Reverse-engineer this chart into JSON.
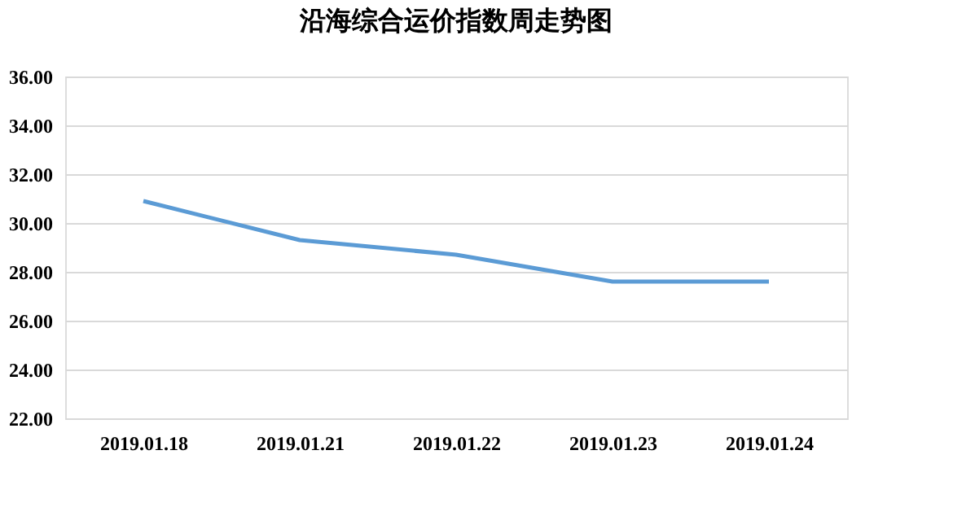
{
  "chart_data": {
    "type": "line",
    "title": "沿海综合运价指数周走势图",
    "categories": [
      "2019.01.18",
      "2019.01.21",
      "2019.01.22",
      "2019.01.23",
      "2019.01.24"
    ],
    "series": [
      {
        "color": "#5b9bd5",
        "values": [
          30.9,
          29.3,
          28.7,
          27.6,
          27.6
        ]
      }
    ],
    "ylim": [
      22,
      36
    ],
    "yticks": [
      {
        "value": 22,
        "label": "22.00"
      },
      {
        "value": 24,
        "label": "24.00"
      },
      {
        "value": 26,
        "label": "26.00"
      },
      {
        "value": 28,
        "label": "28.00"
      },
      {
        "value": 30,
        "label": "30.00"
      },
      {
        "value": 32,
        "label": "32.00"
      },
      {
        "value": 34,
        "label": "34.00"
      },
      {
        "value": 36,
        "label": "36.00"
      }
    ],
    "grid": "y",
    "legend": false,
    "marker": "none",
    "line_style": "solid"
  }
}
